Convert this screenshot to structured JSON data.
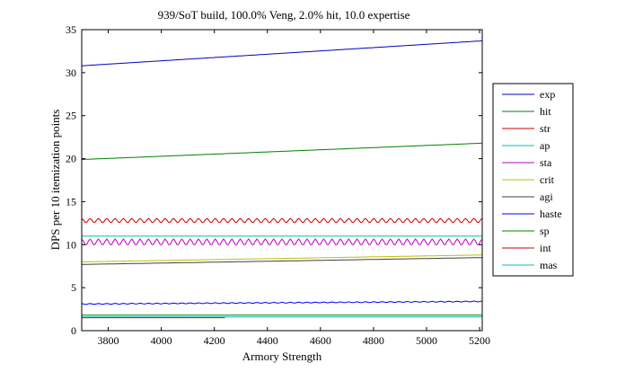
{
  "chart_data": {
    "type": "line",
    "title": "939/SoT build, 100.0% Veng, 2.0% hit, 10.0 expertise",
    "xlabel": "Armory Strength",
    "ylabel": "DPS per 10 itemization points",
    "xlim": [
      3700,
      5210
    ],
    "ylim": [
      0,
      35
    ],
    "xticks": [
      3800,
      4000,
      4200,
      4400,
      4600,
      4800,
      5000,
      5200
    ],
    "yticks": [
      0,
      5,
      10,
      15,
      20,
      25,
      30,
      35
    ],
    "grid": false,
    "legend_position": "right",
    "series": [
      {
        "name": "exp",
        "color": "#0000bf",
        "x_range": [
          3700,
          5210
        ],
        "y_start": 30.8,
        "y_end": 33.7,
        "ripple": 0
      },
      {
        "name": "hit",
        "color": "#008000",
        "x_range": [
          3700,
          5210
        ],
        "y_start": 19.9,
        "y_end": 21.8,
        "ripple": 0
      },
      {
        "name": "str",
        "color": "#cc0000",
        "x_range": [
          3700,
          5210
        ],
        "y_start": 12.8,
        "y_end": 12.8,
        "ripple": 0.25
      },
      {
        "name": "ap",
        "color": "#00bfbf",
        "x_range": [
          3700,
          5210
        ],
        "y_start": 11.0,
        "y_end": 11.0,
        "ripple": 0
      },
      {
        "name": "sta",
        "color": "#bf00bf",
        "x_range": [
          3700,
          5210
        ],
        "y_start": 10.3,
        "y_end": 10.3,
        "ripple": 0.35
      },
      {
        "name": "crit",
        "color": "#bfbf00",
        "x_range": [
          3700,
          5210
        ],
        "y_start": 8.0,
        "y_end": 8.8,
        "ripple": 0
      },
      {
        "name": "agi",
        "color": "#404040",
        "x_range": [
          3700,
          5210
        ],
        "y_start": 7.7,
        "y_end": 8.5,
        "ripple": 0
      },
      {
        "name": "haste",
        "color": "#0000ff",
        "x_range": [
          3700,
          5210
        ],
        "y_start": 3.1,
        "y_end": 3.4,
        "ripple": 0.05
      },
      {
        "name": "sp",
        "color": "#008000",
        "x_range": [
          3700,
          5210
        ],
        "y_start": 1.8,
        "y_end": 1.8,
        "ripple": 0
      },
      {
        "name": "int",
        "color": "#cc0000",
        "x_range": [
          3700,
          4240
        ],
        "y_start": 1.5,
        "y_end": 1.5,
        "ripple": 0
      },
      {
        "name": "mas",
        "color": "#00bfbf",
        "x_range": [
          3700,
          5210
        ],
        "y_start": 1.6,
        "y_end": 1.6,
        "ripple": 0
      }
    ]
  }
}
